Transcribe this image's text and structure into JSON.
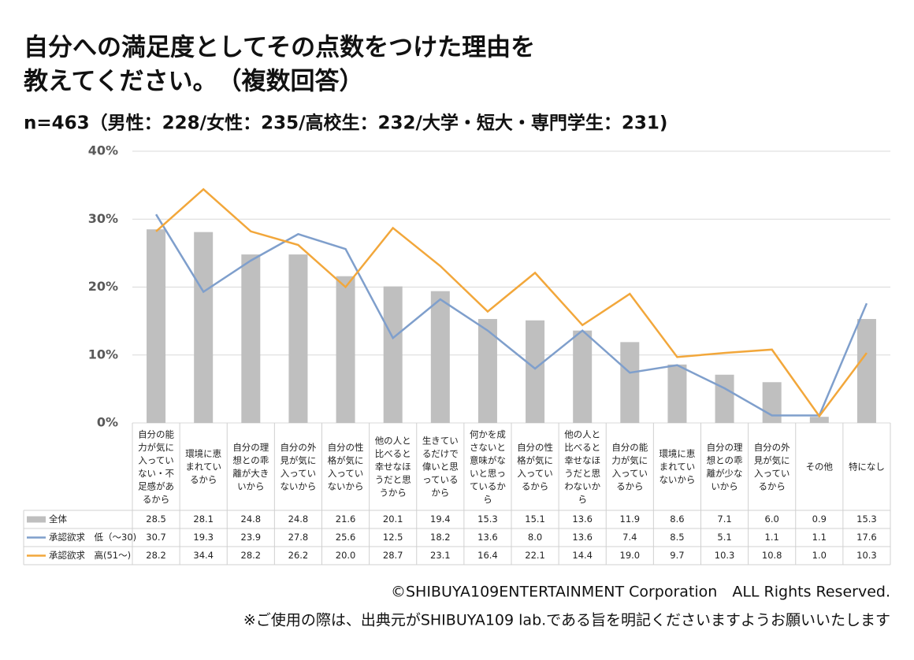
{
  "chart_data": {
    "type": "bar-line",
    "title_lines": [
      "自分への満足度としてその点数をつけた理由を",
      "教えてください。　（複数回答）"
    ],
    "subtitle": "n=463（男性：228/女性：235/高校生：232/大学・短大・専門学生：231)",
    "categories": [
      "自分の能力が気に入っていない・不足感があるから",
      "環境に恵まれているから",
      "自分の理想との乖離が大きいから",
      "自分の外見が気に入っていないから",
      "自分の性格が気に入っていないから",
      "他の人と比べると幸せなほうだと思うから",
      "生きているだけで偉いと思っているから",
      "何かを成さないと意味がないと思っているから",
      "自分の性格が気に入っているから",
      "他の人と比べると幸せなほうだと思わないから",
      "自分の能力が気に入っているから",
      "環境に恵まれていないから",
      "自分の理想との乖離が少ないから",
      "自分の外見が気に入っているから",
      "その他",
      "特になし"
    ],
    "series": [
      {
        "name": "全体",
        "type": "bar",
        "color": "#bfbfbf",
        "values": [
          28.5,
          28.1,
          24.8,
          24.8,
          21.6,
          20.1,
          19.4,
          15.3,
          15.1,
          13.6,
          11.9,
          8.6,
          7.1,
          6.0,
          0.9,
          15.3
        ],
        "value_labels": [
          "28.5",
          "28.1",
          "24.8",
          "24.8",
          "21.6",
          "20.1",
          "19.4",
          "15.3",
          "15.1",
          "13.6",
          "11.9",
          "8.6",
          "7.1",
          "6.0",
          "0.9",
          "15.3"
        ]
      },
      {
        "name": "承認欲求　低（～30)",
        "type": "line",
        "color": "#7f9fcc",
        "values": [
          30.7,
          19.3,
          23.9,
          27.8,
          25.6,
          12.5,
          18.2,
          13.6,
          8.0,
          13.6,
          7.4,
          8.5,
          5.1,
          1.1,
          1.1,
          17.6
        ],
        "value_labels": [
          "30.7",
          "19.3",
          "23.9",
          "27.8",
          "25.6",
          "12.5",
          "18.2",
          "13.6",
          "8.0",
          "13.6",
          "7.4",
          "8.5",
          "5.1",
          "1.1",
          "1.1",
          "17.6"
        ]
      },
      {
        "name": "承認欲求　高(51～)",
        "type": "line",
        "color": "#f2a73b",
        "values": [
          28.2,
          34.4,
          28.2,
          26.2,
          20.0,
          28.7,
          23.1,
          16.4,
          22.1,
          14.4,
          19.0,
          9.7,
          10.3,
          10.8,
          1.0,
          10.3
        ],
        "value_labels": [
          "28.2",
          "34.4",
          "28.2",
          "26.2",
          "20.0",
          "28.7",
          "23.1",
          "16.4",
          "22.1",
          "14.4",
          "19.0",
          "9.7",
          "10.3",
          "10.8",
          "1.0",
          "10.3"
        ]
      }
    ],
    "ylim": [
      0,
      40
    ],
    "yticks": [
      {
        "value": 0,
        "label": "0%"
      },
      {
        "value": 10,
        "label": "10%"
      },
      {
        "value": 20,
        "label": "20%"
      },
      {
        "value": 30,
        "label": "30%"
      },
      {
        "value": 40,
        "label": "40%"
      }
    ],
    "grid": true,
    "footer": [
      "©SHIBUYA109ENTERTAINMENT Corporation　ALL Rights Reserved.",
      "※ご使用の際は、出典元がSHIBUYA109 lab.である旨を明記くださいますようお願いいたします"
    ]
  }
}
